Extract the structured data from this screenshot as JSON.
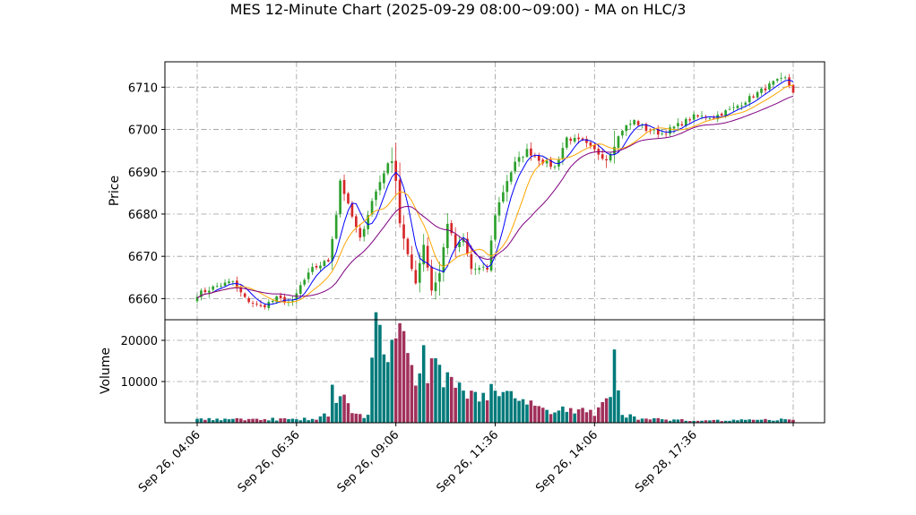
{
  "chart_data": {
    "type": "candlestick",
    "title": "MES 12-Minute Chart (2025-09-29 08:00~09:00) - MA on HLC/3",
    "price_panel": {
      "ylabel": "Price",
      "ylim": [
        6655,
        6716
      ],
      "yticks": [
        6660,
        6670,
        6680,
        6690,
        6700,
        6710
      ],
      "grid": true
    },
    "volume_panel": {
      "ylabel": "Volume",
      "ylim": [
        0,
        25000
      ],
      "yticks": [
        10000,
        20000
      ],
      "grid": true
    },
    "x_tick_labels": [
      "Sep 26, 04:06",
      "Sep 26, 06:36",
      "Sep 26, 09:06",
      "Sep 26, 11:36",
      "Sep 26, 14:06",
      "Sep 28, 17:36"
    ],
    "x_tick_bar_index": [
      0,
      25,
      50,
      75,
      100,
      125
    ],
    "bar_count": 151,
    "colors": {
      "up": "#2ca02c",
      "down": "#d62728",
      "ma_fast": "#0000ff",
      "ma_mid": "#ffa500",
      "ma_slow": "#800080",
      "vol_up": "#007a7a",
      "vol_down": "#a0305a"
    },
    "close_anchors": [
      [
        0,
        6661
      ],
      [
        5,
        6663
      ],
      [
        9,
        6664
      ],
      [
        12,
        6660
      ],
      [
        16,
        6658
      ],
      [
        20,
        6660
      ],
      [
        24,
        6659
      ],
      [
        26,
        6663
      ],
      [
        29,
        6667
      ],
      [
        33,
        6669
      ],
      [
        35,
        6680
      ],
      [
        36,
        6688
      ],
      [
        38,
        6682
      ],
      [
        41,
        6674
      ],
      [
        44,
        6683
      ],
      [
        47,
        6690
      ],
      [
        49,
        6693
      ],
      [
        50,
        6688
      ],
      [
        51,
        6678
      ],
      [
        53,
        6670
      ],
      [
        55,
        6664
      ],
      [
        57,
        6673
      ],
      [
        59,
        6662
      ],
      [
        61,
        6666
      ],
      [
        63,
        6678
      ],
      [
        65,
        6672
      ],
      [
        67,
        6674
      ],
      [
        69,
        6667
      ],
      [
        71,
        6667
      ],
      [
        73,
        6667
      ],
      [
        75,
        6680
      ],
      [
        78,
        6688
      ],
      [
        80,
        6692
      ],
      [
        83,
        6695
      ],
      [
        86,
        6693
      ],
      [
        90,
        6691
      ],
      [
        93,
        6698
      ],
      [
        97,
        6697
      ],
      [
        100,
        6695
      ],
      [
        103,
        6693
      ],
      [
        107,
        6700
      ],
      [
        110,
        6702
      ],
      [
        113,
        6700
      ],
      [
        117,
        6699
      ],
      [
        121,
        6701
      ],
      [
        125,
        6703
      ],
      [
        130,
        6703
      ],
      [
        135,
        6705
      ],
      [
        140,
        6708
      ],
      [
        145,
        6711
      ],
      [
        148,
        6712
      ],
      [
        150,
        6709
      ]
    ],
    "volume_anchors": [
      [
        0,
        800
      ],
      [
        30,
        900
      ],
      [
        33,
        2500
      ],
      [
        34,
        7000
      ],
      [
        36,
        6000
      ],
      [
        40,
        2000
      ],
      [
        43,
        1500
      ],
      [
        44,
        21000
      ],
      [
        47,
        17000
      ],
      [
        50,
        22500
      ],
      [
        53,
        17000
      ],
      [
        56,
        14000
      ],
      [
        60,
        12000
      ],
      [
        65,
        8000
      ],
      [
        72,
        6500
      ],
      [
        75,
        9500
      ],
      [
        80,
        4500
      ],
      [
        90,
        3000
      ],
      [
        100,
        2500
      ],
      [
        104,
        6000
      ],
      [
        105,
        14000
      ],
      [
        107,
        2000
      ],
      [
        112,
        900
      ],
      [
        130,
        600
      ],
      [
        150,
        800
      ]
    ],
    "moving_averages": [
      {
        "color_key": "ma_fast",
        "period": 5
      },
      {
        "color_key": "ma_mid",
        "period": 10
      },
      {
        "color_key": "ma_slow",
        "period": 20
      }
    ]
  }
}
